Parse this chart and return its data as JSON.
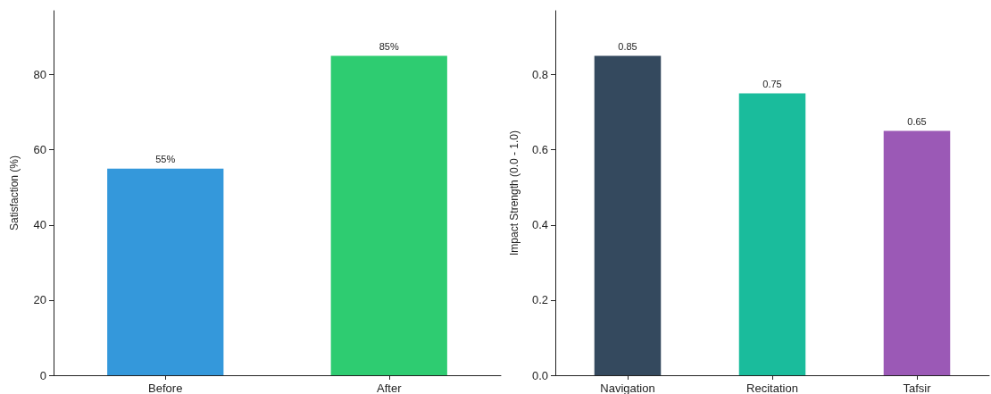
{
  "chart_data": [
    {
      "type": "bar",
      "ylabel": "Satisfaction (%)",
      "categories": [
        "Before",
        "After"
      ],
      "values": [
        55,
        85
      ],
      "colors": [
        "#3498db",
        "#2ecc71"
      ],
      "value_labels": [
        "55%",
        "85%"
      ],
      "ylim": [
        0,
        97
      ],
      "yticks": [
        0,
        20,
        40,
        60,
        80
      ],
      "grid": false
    },
    {
      "type": "bar",
      "ylabel": "Impact Strength (0.0 - 1.0)",
      "categories": [
        "Navigation",
        "Recitation",
        "Tafsir"
      ],
      "values": [
        0.85,
        0.75,
        0.65
      ],
      "colors": [
        "#34495e",
        "#1abc9c",
        "#9b59b6"
      ],
      "data_labels": true,
      "ylim": [
        0,
        0.97
      ],
      "yticks": [
        {
          "value": 0,
          "label": "0.0"
        },
        {
          "value": 0.2,
          "label": "0.2"
        },
        {
          "value": 0.4,
          "label": "0.4"
        },
        {
          "value": 0.6,
          "label": "0.6"
        },
        {
          "value": 0.8,
          "label": "0.8"
        }
      ],
      "grid": false
    }
  ]
}
